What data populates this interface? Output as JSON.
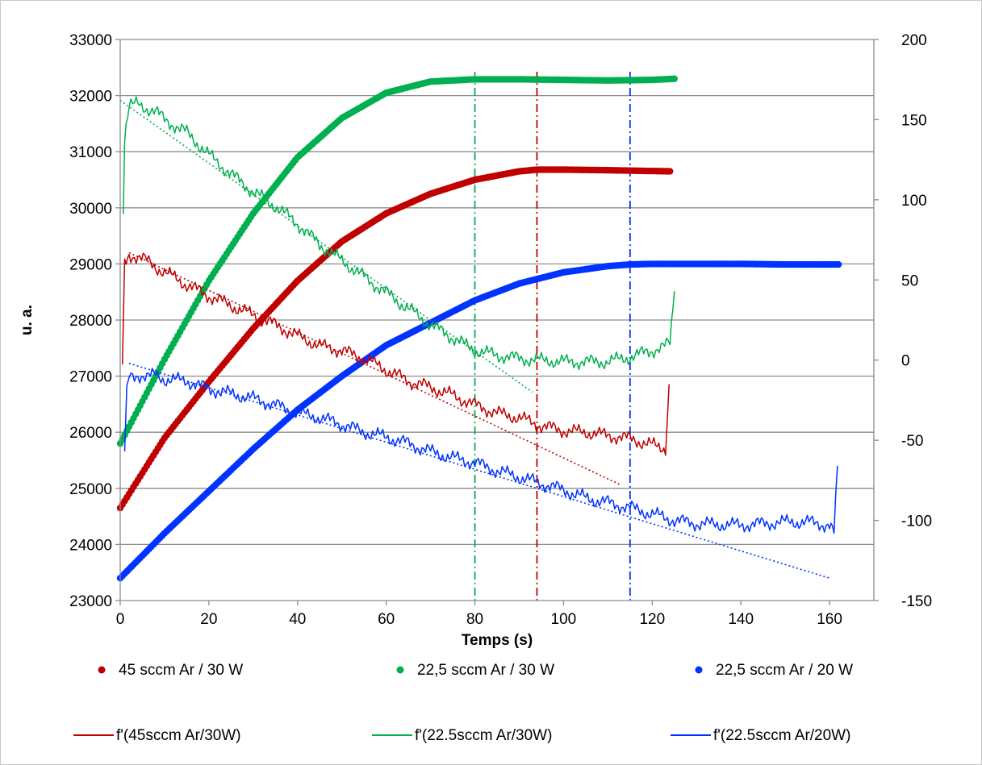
{
  "chart_data": {
    "type": "scatter",
    "xlabel": "Temps (s)",
    "ylabel": "u. a.",
    "xlim": [
      0,
      170
    ],
    "ylim": [
      23000,
      33000
    ],
    "y2lim": [
      -150,
      200
    ],
    "x_ticks": [
      0,
      20,
      40,
      60,
      80,
      100,
      120,
      140,
      160
    ],
    "y_ticks": [
      23000,
      24000,
      25000,
      26000,
      27000,
      28000,
      29000,
      30000,
      31000,
      32000,
      33000
    ],
    "y2_ticks": [
      -150,
      -100,
      -50,
      0,
      50,
      100,
      150,
      200
    ],
    "grid": "horizontal",
    "legend_position": "bottom",
    "series": [
      {
        "name": "45 sccm Ar / 30 W",
        "kind": "markers",
        "axis": "left",
        "color": "#c00000",
        "x": [
          0,
          10,
          20,
          30,
          40,
          50,
          60,
          70,
          80,
          90,
          94,
          100,
          110,
          124
        ],
        "y": [
          24650,
          25900,
          26900,
          27850,
          28700,
          29400,
          29900,
          30250,
          30500,
          30650,
          30680,
          30680,
          30670,
          30650
        ]
      },
      {
        "name": "22,5 sccm Ar / 30 W",
        "kind": "markers",
        "axis": "left",
        "color": "#00b050",
        "x": [
          0,
          10,
          20,
          30,
          40,
          50,
          60,
          70,
          80,
          90,
          100,
          110,
          120,
          125
        ],
        "y": [
          25800,
          27300,
          28700,
          29900,
          30900,
          31600,
          32050,
          32250,
          32290,
          32290,
          32280,
          32270,
          32280,
          32300
        ]
      },
      {
        "name": "22,5 sccm Ar / 20 W",
        "kind": "markers",
        "axis": "left",
        "color": "#0033ff",
        "x": [
          0,
          10,
          20,
          30,
          40,
          50,
          60,
          70,
          80,
          90,
          100,
          110,
          115,
          120,
          130,
          140,
          150,
          162
        ],
        "y": [
          23400,
          24200,
          24950,
          25700,
          26400,
          27000,
          27550,
          27950,
          28350,
          28650,
          28850,
          28960,
          28990,
          29000,
          29000,
          29000,
          28990,
          28990
        ]
      },
      {
        "name": "f'(45sccm Ar/30W)",
        "kind": "line",
        "axis": "right",
        "color": "#c00000",
        "x": [
          0.5,
          1,
          2,
          4,
          6,
          8,
          10,
          15,
          20,
          25,
          30,
          35,
          40,
          45,
          50,
          55,
          60,
          65,
          70,
          75,
          80,
          85,
          90,
          95,
          100,
          105,
          110,
          115,
          120,
          123,
          123.8
        ],
        "y": [
          -5,
          60,
          66,
          64,
          62,
          58,
          55,
          47,
          40,
          34,
          28,
          22,
          15,
          9,
          6,
          1,
          -6,
          -13,
          -17,
          -22,
          -28,
          -33,
          -36,
          -41,
          -44,
          -45,
          -47,
          -49,
          -53,
          -55,
          -15
        ]
      },
      {
        "name": "f'(22.5sccm Ar/30W)",
        "kind": "line",
        "axis": "right",
        "color": "#00b050",
        "x": [
          0.7,
          1,
          2,
          4,
          6,
          8,
          10,
          15,
          20,
          25,
          30,
          35,
          40,
          45,
          50,
          55,
          60,
          65,
          70,
          75,
          80,
          85,
          90,
          95,
          100,
          105,
          110,
          115,
          120,
          124,
          125
        ],
        "y": [
          94,
          140,
          158,
          160,
          157,
          155,
          150,
          142,
          128,
          116,
          105,
          96,
          85,
          72,
          62,
          52,
          42,
          32,
          22,
          14,
          6,
          3,
          1,
          0,
          -1,
          -1,
          -1,
          2,
          6,
          10,
          43
        ]
      },
      {
        "name": "f'(22.5sccm Ar/20W)",
        "kind": "line",
        "axis": "right",
        "color": "#0033ff",
        "x": [
          1,
          1.5,
          2,
          4,
          6,
          8,
          10,
          15,
          20,
          25,
          30,
          35,
          40,
          45,
          50,
          55,
          60,
          65,
          70,
          75,
          80,
          85,
          90,
          95,
          100,
          105,
          110,
          115,
          120,
          125,
          130,
          140,
          150,
          155,
          160,
          161,
          161.8
        ],
        "y": [
          -60,
          -20,
          -10,
          -9,
          -11,
          -9,
          -12,
          -13,
          -18,
          -21,
          -24,
          -28,
          -33,
          -36,
          -40,
          -45,
          -48,
          -52,
          -57,
          -61,
          -64,
          -69,
          -73,
          -77,
          -81,
          -86,
          -89,
          -92,
          -96,
          -100,
          -102,
          -103,
          -101,
          -101,
          -103,
          -108,
          -66
        ]
      },
      {
        "name": "",
        "kind": "trendline",
        "axis": "right",
        "color": "#c00000",
        "x": [
          2,
          113
        ],
        "y": [
          67,
          -78
        ]
      },
      {
        "name": "",
        "kind": "trendline",
        "axis": "right",
        "color": "#00b050",
        "x": [
          0,
          93
        ],
        "y": [
          162,
          -20
        ]
      },
      {
        "name": "",
        "kind": "trendline",
        "axis": "right",
        "color": "#0033ff",
        "x": [
          2,
          160
        ],
        "y": [
          -2,
          -136
        ]
      }
    ],
    "vertical_markers": [
      {
        "x": 80,
        "color": "#00b050"
      },
      {
        "x": 94,
        "color": "#c00000"
      },
      {
        "x": 115,
        "color": "#0033ff"
      }
    ]
  }
}
